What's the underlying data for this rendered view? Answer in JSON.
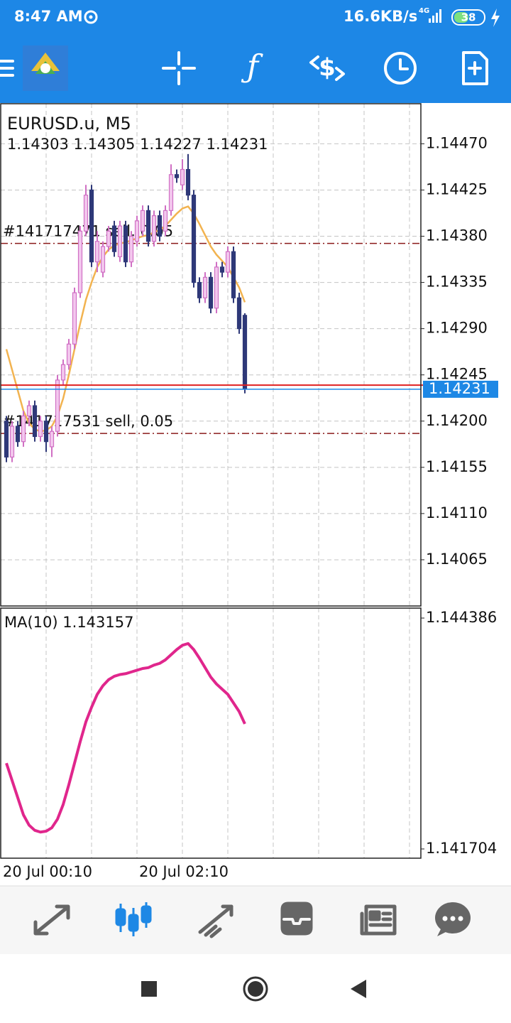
{
  "status_bar": {
    "time": "8:47 AM",
    "speed": "16.6KB/s",
    "network": "4G",
    "battery": "38"
  },
  "chart_data": {
    "type": "candlestick",
    "title": "EURUSD.u, M5",
    "categories": [
      "20 Jul 00:10",
      null,
      null,
      null,
      null,
      null,
      null,
      null,
      null,
      null,
      null,
      null,
      null,
      null,
      null,
      null,
      null,
      null,
      null,
      null,
      null,
      null,
      null,
      null,
      "20 Jul 02:10",
      null,
      null,
      null,
      null,
      null,
      null,
      null,
      null,
      null,
      null,
      null,
      null,
      null,
      null,
      null,
      null,
      null,
      null
    ],
    "candles": [
      [
        1.142,
        1.14205,
        1.1416,
        1.14165
      ],
      [
        1.14165,
        1.142,
        1.1416,
        1.14195
      ],
      [
        1.14195,
        1.142,
        1.14175,
        1.1418
      ],
      [
        1.1418,
        1.1421,
        1.14175,
        1.14205
      ],
      [
        1.14205,
        1.1422,
        1.14195,
        1.14215
      ],
      [
        1.14215,
        1.1422,
        1.1418,
        1.14185
      ],
      [
        1.14185,
        1.14205,
        1.1418,
        1.142
      ],
      [
        1.142,
        1.14205,
        1.1417,
        1.1418
      ],
      [
        1.14175,
        1.14195,
        1.14165,
        1.1419
      ],
      [
        1.1419,
        1.14245,
        1.14185,
        1.1424
      ],
      [
        1.1424,
        1.1426,
        1.14235,
        1.14255
      ],
      [
        1.14255,
        1.1428,
        1.1425,
        1.14275
      ],
      [
        1.14275,
        1.1433,
        1.1427,
        1.14325
      ],
      [
        1.14325,
        1.1439,
        1.1432,
        1.14385
      ],
      [
        1.14385,
        1.1443,
        1.1438,
        1.1442
      ],
      [
        1.14425,
        1.1443,
        1.1435,
        1.14355
      ],
      [
        1.14355,
        1.14385,
        1.14345,
        1.14375
      ],
      [
        1.14345,
        1.14375,
        1.1434,
        1.1437
      ],
      [
        1.1437,
        1.1439,
        1.14365,
        1.14385
      ],
      [
        1.1439,
        1.14395,
        1.1436,
        1.14365
      ],
      [
        1.1436,
        1.14395,
        1.14355,
        1.1439
      ],
      [
        1.1439,
        1.14395,
        1.1435,
        1.14355
      ],
      [
        1.14355,
        1.14385,
        1.1435,
        1.1438
      ],
      [
        1.14375,
        1.144,
        1.1437,
        1.14395
      ],
      [
        1.14385,
        1.1441,
        1.1438,
        1.14405
      ],
      [
        1.14405,
        1.1441,
        1.1437,
        1.14375
      ],
      [
        1.14375,
        1.14405,
        1.1437,
        1.144
      ],
      [
        1.144,
        1.14405,
        1.14375,
        1.1438
      ],
      [
        1.14385,
        1.1441,
        1.1438,
        1.14405
      ],
      [
        1.14405,
        1.1445,
        1.144,
        1.1444
      ],
      [
        1.1444,
        1.14445,
        1.14432,
        1.14437
      ],
      [
        1.1443,
        1.14455,
        1.14425,
        1.14445
      ],
      [
        1.14445,
        1.1446,
        1.14415,
        1.1442
      ],
      [
        1.1442,
        1.14425,
        1.1433,
        1.14335
      ],
      [
        1.14335,
        1.1434,
        1.14315,
        1.1432
      ],
      [
        1.1432,
        1.14345,
        1.14315,
        1.1434
      ],
      [
        1.1434,
        1.14345,
        1.14305,
        1.1431
      ],
      [
        1.1431,
        1.14355,
        1.14305,
        1.1435
      ],
      [
        1.1435,
        1.14355,
        1.1434,
        1.14345
      ],
      [
        1.14345,
        1.1437,
        1.1434,
        1.14365
      ],
      [
        1.14365,
        1.1437,
        1.14315,
        1.1432
      ],
      [
        1.1432,
        1.14325,
        1.14285,
        1.1429
      ],
      [
        1.14303,
        1.14305,
        1.14227,
        1.14231
      ]
    ],
    "colors": {
      "up": "#f3c8ee",
      "up_edge": "#d070c4",
      "down": "#2e3878"
    },
    "ylim": [
      1.1402,
      1.14509
    ],
    "yticks": [
      {
        "value": 1.1447,
        "label": "1.14470"
      },
      1.14425,
      {
        "value": 1.1438,
        "label": "1.14380"
      },
      1.14335,
      {
        "value": 1.1429,
        "label": "1.14290"
      },
      1.14245,
      {
        "value": 1.142,
        "label": "1.14200"
      },
      1.14155,
      {
        "value": 1.1411,
        "label": "1.14110"
      },
      1.14065
    ],
    "grid": true,
    "orders": [
      {
        "label": "#141717471 sell, 0.05",
        "price": 1.14373
      },
      {
        "label": "#141717531 sell, 0.05",
        "price": 1.14188
      }
    ],
    "order_color": "#8b1a1a",
    "bid_line": 1.14231,
    "bid_color": "#1e88e5",
    "ask_line": 1.14235,
    "ask_color": "#e02020",
    "indicator": {
      "name": "MA(10)",
      "values": [
        1.1427,
        1.1425,
        1.1423,
        1.1421,
        1.14198,
        1.14192,
        1.1419,
        1.14191,
        1.14195,
        1.14205,
        1.14222,
        1.14245,
        1.1427,
        1.14295,
        1.14318,
        1.14335,
        1.1435,
        1.1436,
        1.14367,
        1.14371,
        1.14373,
        1.14374,
        1.14376,
        1.14378,
        1.1438,
        1.14381,
        1.14384,
        1.14386,
        1.1439,
        1.14396,
        1.14402,
        1.14407,
        1.14409,
        1.14402,
        1.14392,
        1.14381,
        1.1437,
        1.14362,
        1.14356,
        1.1435,
        1.1434,
        1.1433,
        1.143157
      ],
      "main_color": "#f2b350",
      "color": "#e0268c",
      "ylim": [
        1.141704,
        1.144386
      ],
      "yticks": [
        1.141704,
        1.144386
      ]
    }
  }
}
